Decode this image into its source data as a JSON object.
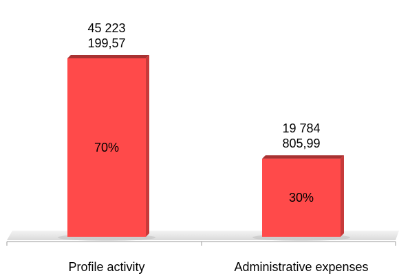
{
  "chart_data": {
    "type": "bar",
    "categories": [
      "Profile activity",
      "Administrative expenses"
    ],
    "values": [
      45223199.57,
      19784805.99
    ],
    "value_labels": [
      "45 223 199,57",
      "19 784 805,99"
    ],
    "percent_values": [
      70,
      30
    ],
    "percent_labels": [
      "70%",
      "30%"
    ],
    "color": "#ff4a4a"
  }
}
